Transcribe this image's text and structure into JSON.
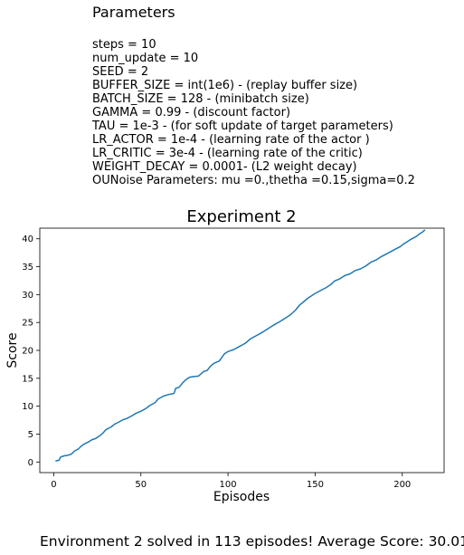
{
  "parameters": {
    "title": "Parameters",
    "lines": [
      "steps = 10",
      "num_update = 10",
      "SEED = 2",
      "BUFFER_SIZE = int(1e6) - (replay buffer size)",
      "BATCH_SIZE = 128 - (minibatch size)",
      "GAMMA = 0.99 - (discount factor)",
      "TAU = 1e-3 - (for soft update of target parameters)",
      "LR_ACTOR = 1e-4 - (learning rate of the actor )",
      "LR_CRITIC = 3e-4 - (learning rate of the critic)",
      "WEIGHT_DECAY = 0.0001- (L2 weight decay)",
      "OUNoise Parameters: mu =0.,thetha =0.15,sigma=0.2"
    ]
  },
  "chart_data": {
    "type": "line",
    "title": "Experiment 2",
    "xlabel": "Episodes",
    "ylabel": "Score",
    "xlim": [
      -8,
      224
    ],
    "ylim": [
      -1.9,
      41.9
    ],
    "xticks": [
      0,
      50,
      100,
      150,
      200
    ],
    "yticks": [
      0,
      5,
      10,
      15,
      20,
      25,
      30,
      35,
      40
    ],
    "grid": false,
    "line_color": "#1f77b4",
    "series": [
      {
        "x": [
          1,
          3,
          4,
          6,
          8,
          10,
          12,
          14,
          16,
          18,
          20,
          22,
          24,
          26,
          28,
          30,
          33,
          35,
          37,
          40,
          42,
          45,
          47,
          50,
          53,
          55,
          58,
          60,
          63,
          66,
          69,
          70,
          72,
          74,
          76,
          78,
          80,
          83,
          86,
          88,
          90,
          92,
          95,
          98,
          100,
          103,
          106,
          110,
          113,
          116,
          120,
          123,
          126,
          130,
          133,
          136,
          139,
          141,
          143,
          146,
          150,
          153,
          156,
          159,
          161,
          164,
          167,
          170,
          173,
          176,
          179,
          182,
          185,
          188,
          191,
          194,
          197,
          199,
          200,
          202,
          205,
          208,
          210,
          212,
          213
        ],
        "y": [
          0.2,
          0.3,
          0.9,
          1.1,
          1.2,
          1.4,
          2.0,
          2.3,
          2.9,
          3.3,
          3.6,
          4.0,
          4.2,
          4.6,
          5.1,
          5.8,
          6.3,
          6.8,
          7.1,
          7.6,
          7.8,
          8.3,
          8.7,
          9.1,
          9.6,
          10.1,
          10.6,
          11.3,
          11.8,
          12.1,
          12.3,
          13.2,
          13.4,
          14.2,
          14.8,
          15.2,
          15.3,
          15.4,
          16.2,
          16.4,
          17.2,
          17.7,
          18.1,
          19.4,
          19.8,
          20.1,
          20.6,
          21.3,
          22.1,
          22.6,
          23.3,
          23.9,
          24.5,
          25.2,
          25.8,
          26.4,
          27.3,
          28.1,
          28.6,
          29.4,
          30.2,
          30.7,
          31.2,
          31.8,
          32.4,
          32.8,
          33.4,
          33.7,
          34.3,
          34.6,
          35.1,
          35.8,
          36.2,
          36.8,
          37.3,
          37.8,
          38.3,
          38.6,
          38.9,
          39.3,
          39.9,
          40.4,
          40.9,
          41.3,
          41.6
        ]
      }
    ]
  },
  "footer": {
    "text": "Environment 2 solved in 113 episodes! Average Score: 30.01"
  }
}
